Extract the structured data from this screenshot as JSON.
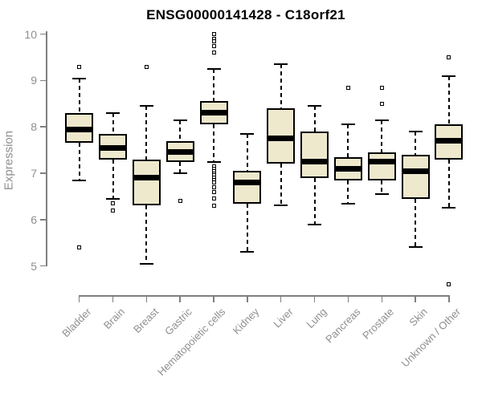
{
  "chart_data": {
    "type": "boxplot",
    "title": "ENSG00000141428 - C18orf21",
    "ylabel": "Expression",
    "xlabel": "",
    "y_ticks": [
      5,
      6,
      7,
      8,
      9,
      10
    ],
    "ylim": [
      4.4,
      10.1
    ],
    "grid": false,
    "legend": "none",
    "colors": {
      "box_fill": "#EEE8CD",
      "box_border": "#000000",
      "axis": "#7F7F7F",
      "tick_label": "#8F8F8F",
      "title": "#000000"
    },
    "categories": [
      "Bladder",
      "Brain",
      "Breast",
      "Gastric",
      "Hematopoietic cells",
      "Kidney",
      "Liver",
      "Lung",
      "Pancreas",
      "Prostate",
      "Skin",
      "Unknown / Other"
    ],
    "series": [
      {
        "category": "Bladder",
        "whisker_low": 6.85,
        "q1": 7.65,
        "median": 7.95,
        "q3": 8.3,
        "whisker_high": 9.05,
        "outliers": [
          9.3,
          5.4
        ]
      },
      {
        "category": "Brain",
        "whisker_low": 6.45,
        "q1": 7.3,
        "median": 7.55,
        "q3": 7.85,
        "whisker_high": 8.3,
        "outliers": [
          6.35,
          6.2
        ]
      },
      {
        "category": "Breast",
        "whisker_low": 5.05,
        "q1": 6.3,
        "median": 6.9,
        "q3": 7.3,
        "whisker_high": 8.45,
        "outliers": [
          9.3
        ]
      },
      {
        "category": "Gastric",
        "whisker_low": 7.0,
        "q1": 7.25,
        "median": 7.45,
        "q3": 7.7,
        "whisker_high": 8.15,
        "outliers": [
          6.4
        ]
      },
      {
        "category": "Hematopoietic cells",
        "whisker_low": 7.25,
        "q1": 8.05,
        "median": 8.3,
        "q3": 8.55,
        "whisker_high": 9.25,
        "outliers": [
          10.0,
          9.9,
          9.85,
          9.75,
          9.6,
          7.15,
          7.1,
          7.05,
          7.0,
          6.95,
          6.9,
          6.85,
          6.8,
          6.7,
          6.6,
          6.45,
          6.3
        ]
      },
      {
        "category": "Kidney",
        "whisker_low": 5.3,
        "q1": 6.35,
        "median": 6.8,
        "q3": 7.05,
        "whisker_high": 7.85,
        "outliers": []
      },
      {
        "category": "Liver",
        "whisker_low": 6.3,
        "q1": 7.2,
        "median": 7.75,
        "q3": 8.4,
        "whisker_high": 9.35,
        "outliers": []
      },
      {
        "category": "Lung",
        "whisker_low": 5.9,
        "q1": 6.9,
        "median": 7.25,
        "q3": 7.9,
        "whisker_high": 8.45,
        "outliers": []
      },
      {
        "category": "Pancreas",
        "whisker_low": 6.35,
        "q1": 6.85,
        "median": 7.1,
        "q3": 7.35,
        "whisker_high": 8.05,
        "outliers": [
          8.85
        ]
      },
      {
        "category": "Prostate",
        "whisker_low": 6.55,
        "q1": 6.85,
        "median": 7.25,
        "q3": 7.45,
        "whisker_high": 8.15,
        "outliers": [
          8.85,
          8.5
        ]
      },
      {
        "category": "Skin",
        "whisker_low": 5.4,
        "q1": 6.45,
        "median": 7.05,
        "q3": 7.4,
        "whisker_high": 7.9,
        "outliers": []
      },
      {
        "category": "Unknown / Other",
        "whisker_low": 6.25,
        "q1": 7.3,
        "median": 7.7,
        "q3": 8.05,
        "whisker_high": 9.1,
        "outliers": [
          9.5,
          4.6
        ]
      }
    ]
  }
}
